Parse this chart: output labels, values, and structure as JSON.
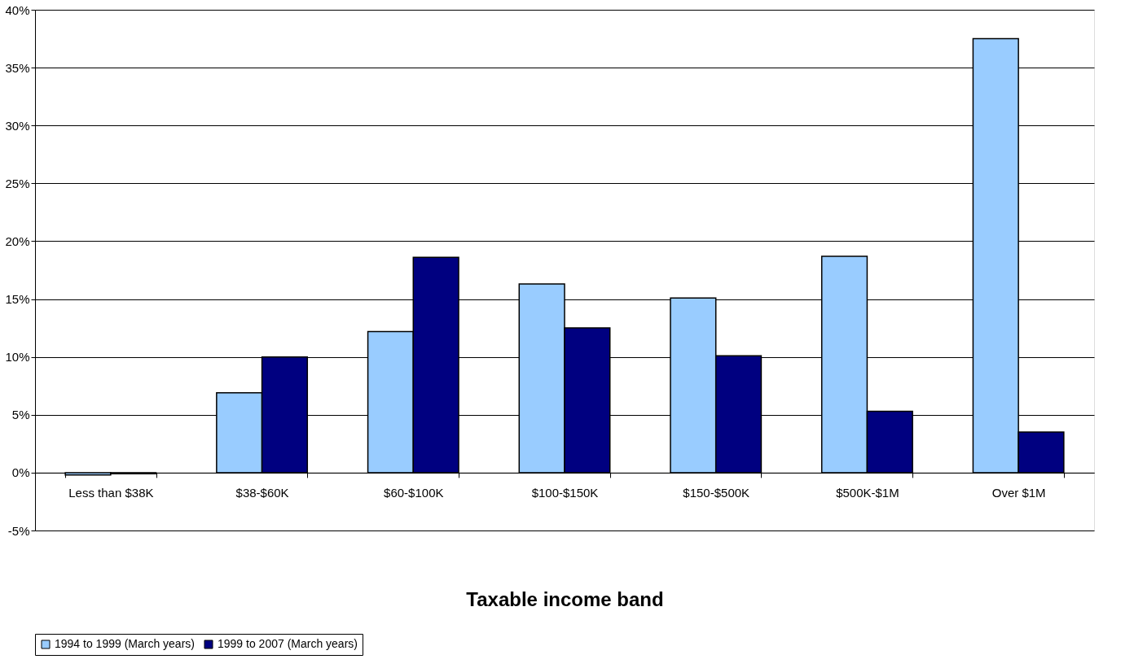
{
  "chart_data": {
    "type": "bar",
    "xlabel": "Taxable income band",
    "categories": [
      "Less than $38K",
      "$38-$60K",
      "$60-$100K",
      "$100-$150K",
      "$150-$500K",
      "$500K-$1M",
      "Over $1M"
    ],
    "series": [
      {
        "name": "1994 to 1999 (March years)",
        "color": "#99ccff",
        "values": [
          -0.2,
          6.9,
          12.2,
          16.3,
          15.1,
          18.7,
          37.5
        ]
      },
      {
        "name": "1999 to 2007 (March years)",
        "color": "#000080",
        "values": [
          -0.1,
          10.0,
          18.6,
          12.5,
          10.1,
          5.3,
          3.5
        ]
      }
    ],
    "ylim": [
      -5,
      40
    ],
    "yticks": [
      {
        "value": -5,
        "label": "-5%"
      },
      {
        "value": 0,
        "label": "0%"
      },
      {
        "value": 5,
        "label": "5%"
      },
      {
        "value": 10,
        "label": "10%"
      },
      {
        "value": 15,
        "label": "15%"
      },
      {
        "value": 20,
        "label": "20%"
      },
      {
        "value": 25,
        "label": "25%"
      },
      {
        "value": 30,
        "label": "30%"
      },
      {
        "value": 35,
        "label": "35%"
      },
      {
        "value": 40,
        "label": "40%"
      }
    ],
    "grid": "y",
    "legend": "bottom"
  }
}
